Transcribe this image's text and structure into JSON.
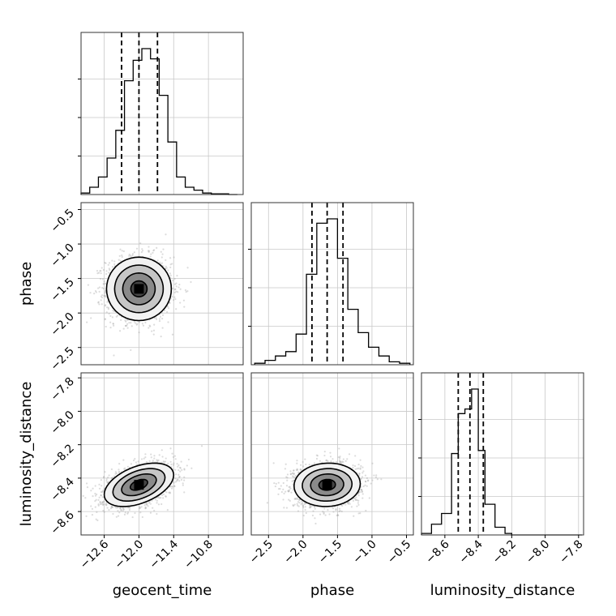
{
  "chart_data": {
    "type": "corner",
    "parameters": [
      "geocent_time",
      "phase",
      "luminosity_distance"
    ],
    "grid": true,
    "axes": {
      "geocent_time": {
        "label": "geocent_time",
        "range": [
          -13.0,
          -10.2
        ],
        "ticks": [
          -12.6,
          -12.0,
          -11.4,
          -10.8
        ],
        "tick_labels": [
          "−12.6",
          "−12.0",
          "−11.4",
          "−10.8"
        ]
      },
      "phase": {
        "label": "phase",
        "range": [
          -2.75,
          -0.4
        ],
        "ticks": [
          -2.5,
          -2.0,
          -1.5,
          -1.0,
          -0.5
        ],
        "tick_labels": [
          "−2.5",
          "−2.0",
          "−1.5",
          "−1.0",
          "−0.5"
        ]
      },
      "luminosity_distance": {
        "label": "luminosity_distance",
        "range": [
          -8.74,
          -7.77
        ],
        "ticks": [
          -8.6,
          -8.4,
          -8.2,
          -8.0,
          -7.8
        ],
        "tick_labels": [
          "−8.6",
          "−8.4",
          "−8.2",
          "−8.0",
          "−7.8"
        ]
      }
    },
    "marginals": [
      {
        "param": "geocent_time",
        "quantiles": [
          -12.3,
          -12.0,
          -11.68
        ],
        "bins": [
          -13.0,
          -12.85,
          -12.7,
          -12.55,
          -12.4,
          -12.25,
          -12.1,
          -11.95,
          -11.8,
          -11.65,
          -11.5,
          -11.35,
          -11.2,
          -11.05,
          -10.9,
          -10.75,
          -10.6,
          -10.45,
          -10.3
        ],
        "counts": [
          0.01,
          0.05,
          0.12,
          0.25,
          0.44,
          0.78,
          0.92,
          1.0,
          0.93,
          0.68,
          0.36,
          0.12,
          0.05,
          0.03,
          0.01,
          0.005,
          0.005,
          0.0
        ]
      },
      {
        "param": "phase",
        "quantiles": [
          -1.87,
          -1.65,
          -1.42
        ],
        "bins": [
          -2.7,
          -2.55,
          -2.4,
          -2.25,
          -2.1,
          -1.95,
          -1.8,
          -1.65,
          -1.5,
          -1.35,
          -1.2,
          -1.05,
          -0.9,
          -0.75,
          -0.6,
          -0.45
        ],
        "counts": [
          0.01,
          0.03,
          0.06,
          0.09,
          0.21,
          0.62,
          0.97,
          1.0,
          0.73,
          0.38,
          0.22,
          0.12,
          0.06,
          0.02,
          0.01
        ]
      },
      {
        "param": "luminosity_distance",
        "quantiles": [
          -8.52,
          -8.45,
          -8.37
        ],
        "bins": [
          -8.74,
          -8.68,
          -8.62,
          -8.56,
          -8.52,
          -8.48,
          -8.44,
          -8.4,
          -8.36,
          -8.3,
          -8.24,
          -8.2,
          -7.78
        ],
        "counts": [
          0.01,
          0.07,
          0.14,
          0.53,
          0.79,
          0.82,
          0.95,
          0.55,
          0.2,
          0.05,
          0.01,
          0.0
        ]
      }
    ],
    "joints": [
      {
        "x": "geocent_time",
        "y": "phase",
        "center": [
          -12.0,
          -1.65
        ],
        "spread": [
          0.28,
          0.23
        ],
        "corr": 0.0,
        "contour_levels": [
          0.5,
          1.0,
          1.5,
          2.0
        ],
        "scatter_count": 1800
      },
      {
        "x": "geocent_time",
        "y": "luminosity_distance",
        "center": [
          -12.0,
          -8.44
        ],
        "spread": [
          0.3,
          0.065
        ],
        "corr": 0.45,
        "contour_levels": [
          0.5,
          1.0,
          1.5,
          2.0
        ],
        "scatter_count": 1800
      },
      {
        "x": "phase",
        "y": "luminosity_distance",
        "center": [
          -1.65,
          -8.44
        ],
        "spread": [
          0.24,
          0.065
        ],
        "corr": 0.05,
        "contour_levels": [
          0.5,
          1.0,
          1.5,
          2.0
        ],
        "scatter_count": 1800
      }
    ]
  }
}
